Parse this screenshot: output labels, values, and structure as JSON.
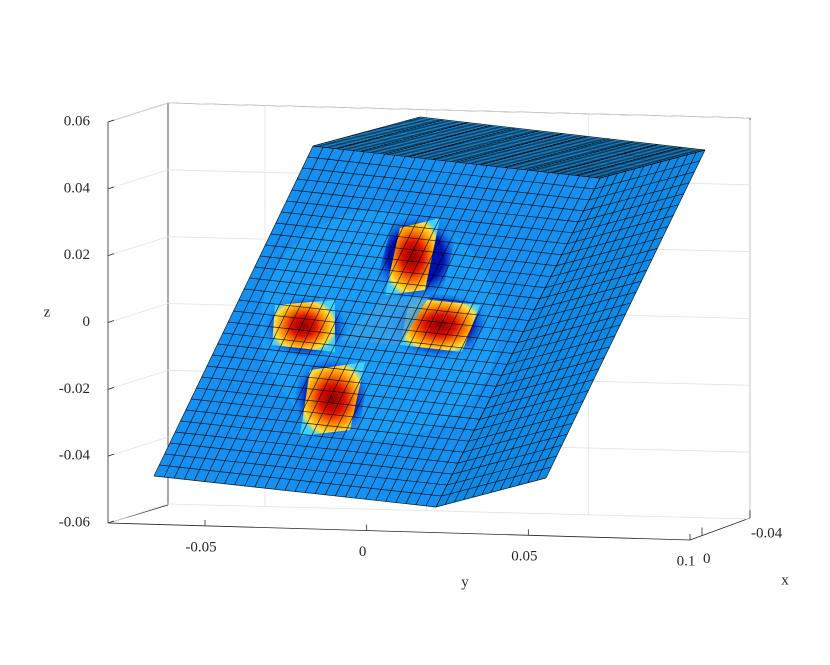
{
  "chart_data": {
    "type": "surface",
    "xlabel": "x",
    "ylabel": "y",
    "zlabel": "z",
    "xlim": [
      0.01,
      -0.04
    ],
    "xticks": [
      0,
      -0.04
    ],
    "ylim": [
      -0.08,
      0.1
    ],
    "yticks": [
      -0.05,
      0,
      0.05,
      0.1
    ],
    "zlim": [
      -0.06,
      0.06
    ],
    "zticks": [
      -0.06,
      -0.04,
      -0.02,
      0,
      0.02,
      0.04,
      0.06
    ],
    "grid": true
  }
}
